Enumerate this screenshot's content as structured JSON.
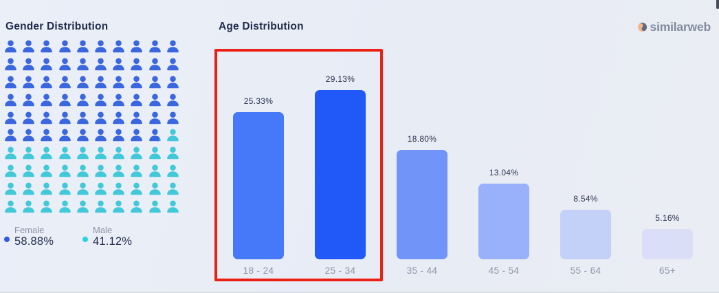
{
  "gender_section": {
    "title": "Gender Distribution",
    "legend": [
      {
        "label": "Female",
        "value": "58.88%",
        "color": "#3359ec"
      },
      {
        "label": "Male",
        "value": "41.12%",
        "color": "#2bd2e2"
      }
    ]
  },
  "age_section": {
    "title": "Age Distribution"
  },
  "logo": {
    "text": "similarweb",
    "icon": "similarweb-swirl-icon",
    "icon_colors": {
      "orange": "#f3b690",
      "slate": "#5e6a7e"
    },
    "text_color": "#818c9f"
  },
  "chart_data": [
    {
      "type": "waffle",
      "title": "Gender Distribution",
      "categories": [
        "Female",
        "Male"
      ],
      "values": [
        58.88,
        41.12
      ],
      "value_labels": [
        "58.88%",
        "41.12%"
      ],
      "colors": [
        "#3a66e0",
        "#42c9d9"
      ],
      "grid": {
        "rows": 10,
        "cols": 10
      },
      "legend_position": "bottom-left"
    },
    {
      "type": "bar",
      "title": "Age Distribution",
      "categories": [
        "18 - 24",
        "25 - 34",
        "35 - 44",
        "45 - 54",
        "55 - 64",
        "65+"
      ],
      "values": [
        25.33,
        29.13,
        18.8,
        13.04,
        8.54,
        5.16
      ],
      "value_labels": [
        "25.33%",
        "29.13%",
        "18.80%",
        "13.04%",
        "8.54%",
        "5.16%"
      ],
      "bar_colors": [
        "#4579fa",
        "#2059f7",
        "#7194f8",
        "#99b1fa",
        "#c3d0f8",
        "#dadff7"
      ],
      "value_label_color": "#2a3450",
      "axis_label_color": "#8c95a9",
      "ylim": [
        0,
        35
      ],
      "grid_lines": false,
      "highlight": {
        "categories": [
          "18 - 24",
          "25 - 34"
        ],
        "border_color": "#ea2013",
        "shape": "rectangle"
      }
    }
  ]
}
